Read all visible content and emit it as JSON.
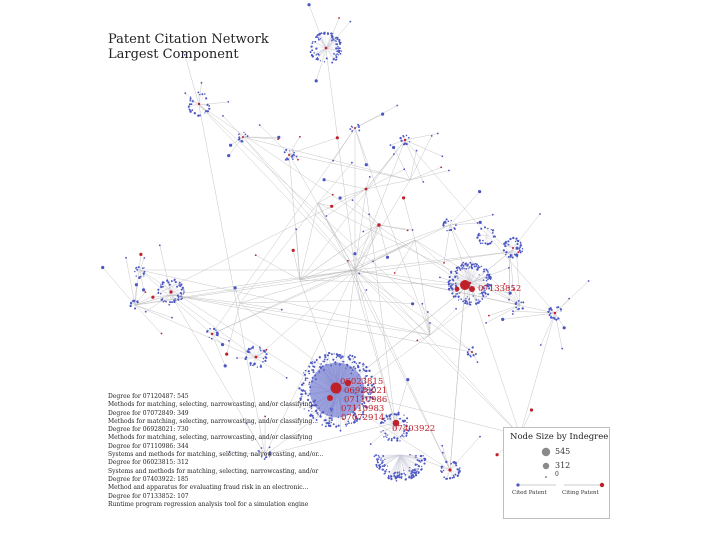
{
  "title": {
    "line1": "Patent Citation Network",
    "line2": "Largest Component"
  },
  "info_lines": [
    "Degree for 07120487: 545",
    "Methods for matching, selecting, narrowcasting, and/or classifying...",
    "Degree for 07072849: 349",
    "Methods for matching, selecting, narrowcasting, and/or classifying...",
    "Degree for 06928021: 730",
    "Methods for matching, selecting, narrowcasting, and/or classifying",
    "Degree for 07110986: 344",
    "Systems and methods for matching, selecting, narrowcasting, and/or...",
    "Degree for 06023815: 312",
    "Systems and methods for matching, selecting, narrowcasting, and/or",
    "Degree for 07403922: 185",
    "Method and apparatus for evaluating fraud risk in an electronic...",
    "Degree for 07133852: 107",
    "Runtime program regression analysis tool for a simulation engine"
  ],
  "node_labels": [
    {
      "id": "07133852",
      "text": "07133852"
    },
    {
      "id": "06023815",
      "text": "06023815"
    },
    {
      "id": "06928021",
      "text": "06928021"
    },
    {
      "id": "07110986",
      "text": "07110986"
    },
    {
      "id": "07110983",
      "text": "07110983"
    },
    {
      "id": "07072914",
      "text": "07072914"
    },
    {
      "id": "07403922",
      "text": "07403922"
    }
  ],
  "legend": {
    "title": "Node Size by Indegree",
    "values": [
      "545",
      "312",
      "0"
    ],
    "cited_label": "Cited Patent",
    "citing_label": "Citing Patent",
    "cited_color": "#4c57c4",
    "citing_color": "#c0202a"
  },
  "colors": {
    "cited": "#4c57c4",
    "citing": "#c0202a",
    "edge": "#b8b8b8"
  }
}
